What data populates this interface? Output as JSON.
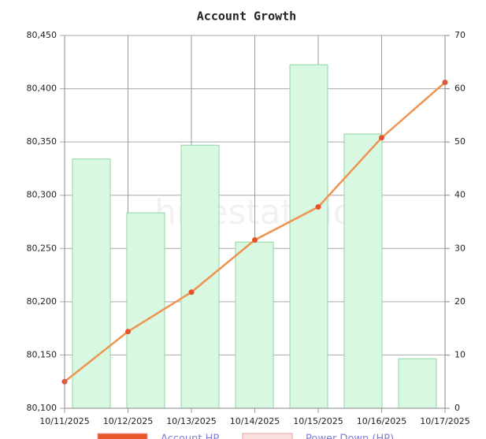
{
  "chart_data": {
    "type": "combo",
    "title": "Account Growth",
    "watermark": "hivestats.io",
    "x": [
      "10/11/2025",
      "10/12/2025",
      "10/13/2025",
      "10/14/2025",
      "10/15/2025",
      "10/16/2025",
      "10/17/2025"
    ],
    "series": [
      {
        "type": "line",
        "color": "#ef9450",
        "marker_color": "#e8502a",
        "axis": "y",
        "values": [
          80125,
          80172,
          80209,
          80258,
          80289,
          80354,
          80406
        ]
      },
      {
        "type": "bar",
        "color": "#d8f8e2",
        "stroke": "#8fd6a2",
        "axis": "y2",
        "values": [
          46.8,
          36.7,
          49.4,
          31.2,
          64.5,
          51.5,
          9.3
        ]
      }
    ],
    "legend": [
      {
        "label": "Account HP",
        "color": "#e8562a"
      },
      {
        "label": "Power Down (HP)",
        "color": "#fbe0e0"
      }
    ],
    "ylim": [
      80100,
      80450
    ],
    "yticks": [
      {
        "value": 80100,
        "label": "80,100"
      },
      {
        "value": 80150,
        "label": "80,150"
      },
      {
        "value": 80200,
        "label": "80,200"
      },
      {
        "value": 80250,
        "label": "80,250"
      },
      {
        "value": 80300,
        "label": "80,300"
      },
      {
        "value": 80350,
        "label": "80,350"
      },
      {
        "value": 80400,
        "label": "80,400"
      },
      {
        "value": 80450,
        "label": "80,450"
      }
    ],
    "y2lim": [
      0,
      70
    ],
    "y2ticks": [
      0,
      10,
      20,
      30,
      40,
      50,
      60,
      70
    ],
    "grid": true
  }
}
